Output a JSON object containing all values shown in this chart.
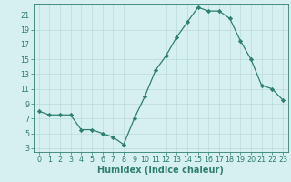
{
  "x": [
    0,
    1,
    2,
    3,
    4,
    5,
    6,
    7,
    8,
    9,
    10,
    11,
    12,
    13,
    14,
    15,
    16,
    17,
    18,
    19,
    20,
    21,
    22,
    23
  ],
  "y": [
    8,
    7.5,
    7.5,
    7.5,
    5.5,
    5.5,
    5,
    4.5,
    3.5,
    7,
    10,
    13.5,
    15.5,
    18,
    20,
    22,
    21.5,
    21.5,
    20.5,
    17.5,
    15,
    11.5,
    11,
    9.5
  ],
  "line_color": "#2E7F6E",
  "marker": "D",
  "marker_size": 2.2,
  "bg_color": "#D6F0EF",
  "grid_color": "#B8DADA",
  "xlabel": "Humidex (Indice chaleur)",
  "xlim": [
    -0.5,
    23.5
  ],
  "ylim": [
    2.5,
    22.5
  ],
  "yticks": [
    3,
    5,
    7,
    9,
    11,
    13,
    15,
    17,
    19,
    21
  ],
  "xticks": [
    0,
    1,
    2,
    3,
    4,
    5,
    6,
    7,
    8,
    9,
    10,
    11,
    12,
    13,
    14,
    15,
    16,
    17,
    18,
    19,
    20,
    21,
    22,
    23
  ],
  "xtick_labels": [
    "0",
    "1",
    "2",
    "3",
    "4",
    "5",
    "6",
    "7",
    "8",
    "9",
    "10",
    "11",
    "12",
    "13",
    "14",
    "15",
    "16",
    "17",
    "18",
    "19",
    "20",
    "21",
    "22",
    "23"
  ],
  "ytick_labels": [
    "3",
    "5",
    "7",
    "9",
    "11",
    "13",
    "15",
    "17",
    "19",
    "21"
  ],
  "tick_fontsize": 5.8,
  "xlabel_fontsize": 7.0
}
